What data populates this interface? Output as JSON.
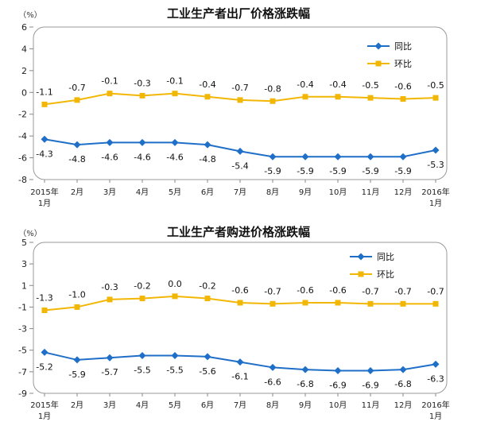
{
  "chart_data": [
    {
      "type": "line",
      "title": "工业生产者出厂价格涨跌幅",
      "ylabel": "（%）",
      "ylim": [
        -8,
        6
      ],
      "yticks": [
        6,
        4,
        2,
        0,
        -2,
        -4,
        -6,
        -8
      ],
      "grid": false,
      "legend_position": "top-right",
      "categories": [
        "2015年1月",
        "2月",
        "3月",
        "4月",
        "5月",
        "6月",
        "7月",
        "8月",
        "9月",
        "10月",
        "11月",
        "12月",
        "2016年1月"
      ],
      "series": [
        {
          "name": "同比",
          "color": "#1F6FC8",
          "marker": "diamond",
          "values": [
            -4.3,
            -4.8,
            -4.6,
            -4.6,
            -4.6,
            -4.8,
            -5.4,
            -5.9,
            -5.9,
            -5.9,
            -5.9,
            -5.9,
            -5.3
          ]
        },
        {
          "name": "环比",
          "color": "#F2B705",
          "marker": "square",
          "values": [
            -1.1,
            -0.7,
            -0.1,
            -0.3,
            -0.1,
            -0.4,
            -0.7,
            -0.8,
            -0.4,
            -0.4,
            -0.5,
            -0.6,
            -0.5
          ]
        }
      ]
    },
    {
      "type": "line",
      "title": "工业生产者购进价格涨跌幅",
      "ylabel": "（%）",
      "ylim": [
        -9,
        5
      ],
      "yticks": [
        5,
        3,
        1,
        -1,
        -3,
        -5,
        -7,
        -9
      ],
      "grid": false,
      "legend_position": "top-right",
      "categories": [
        "2015年1月",
        "2月",
        "3月",
        "4月",
        "5月",
        "6月",
        "7月",
        "8月",
        "9月",
        "10月",
        "11月",
        "12月",
        "2016年1月"
      ],
      "series": [
        {
          "name": "同比",
          "color": "#1F6FC8",
          "marker": "diamond",
          "values": [
            -5.2,
            -5.9,
            -5.7,
            -5.5,
            -5.5,
            -5.6,
            -6.1,
            -6.6,
            -6.8,
            -6.9,
            -6.9,
            -6.8,
            -6.3
          ]
        },
        {
          "name": "环比",
          "color": "#F2B705",
          "marker": "square",
          "values": [
            -1.3,
            -1.0,
            -0.3,
            -0.2,
            0.0,
            -0.2,
            -0.6,
            -0.7,
            -0.6,
            -0.6,
            -0.7,
            -0.7,
            -0.7
          ]
        }
      ]
    }
  ]
}
